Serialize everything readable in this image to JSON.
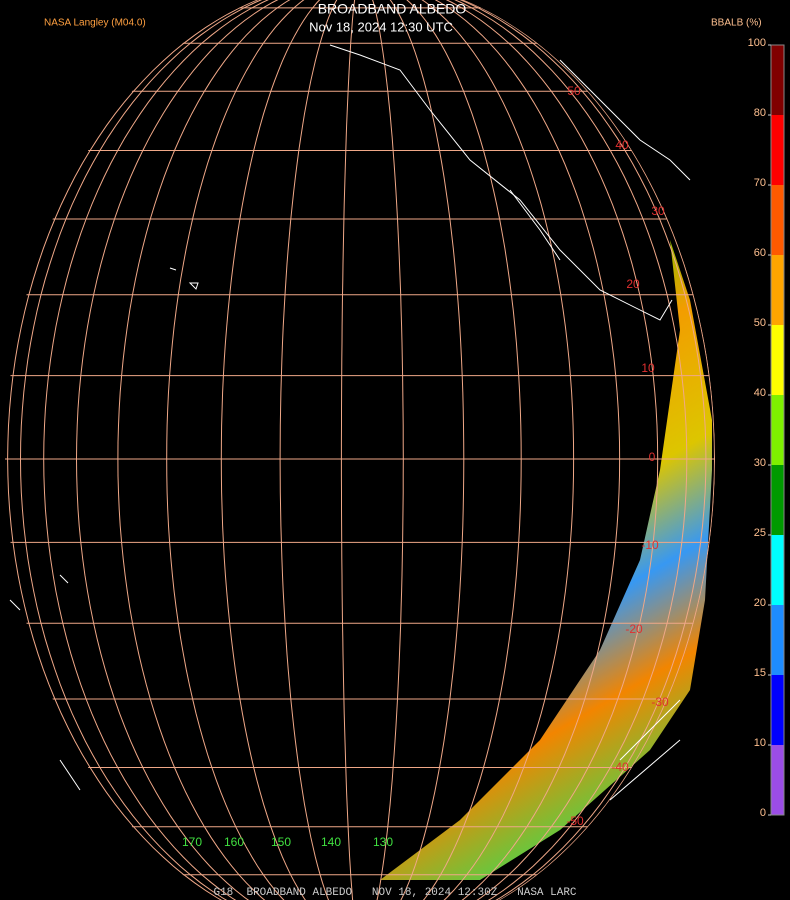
{
  "header": {
    "title": "BROADBAND ALBEDO",
    "subtitle": "Nov 18, 2024 12:30 UTC",
    "credit": "NASA Langley (M04.0)",
    "colorbar_label": "BBALB (%)"
  },
  "map": {
    "latitude_labels": [
      50,
      40,
      30,
      20,
      10,
      0,
      -10,
      -20,
      -30,
      -40,
      -50
    ],
    "longitude_labels": [
      170,
      160,
      150,
      140,
      130
    ]
  },
  "colorbar": {
    "ticks": [
      0,
      10,
      15,
      20,
      25,
      30,
      40,
      50,
      60,
      70,
      80,
      100
    ],
    "colors": [
      "#9b4de6",
      "#0000ff",
      "#1e8cff",
      "#00ffff",
      "#009a00",
      "#7ef000",
      "#ffff00",
      "#ffa500",
      "#ff5a00",
      "#ff0000",
      "#800000"
    ]
  },
  "footer": {
    "text": "G18  BROADBAND ALBEDO   NOV 18, 2024 12:30Z   NASA LARC"
  }
}
